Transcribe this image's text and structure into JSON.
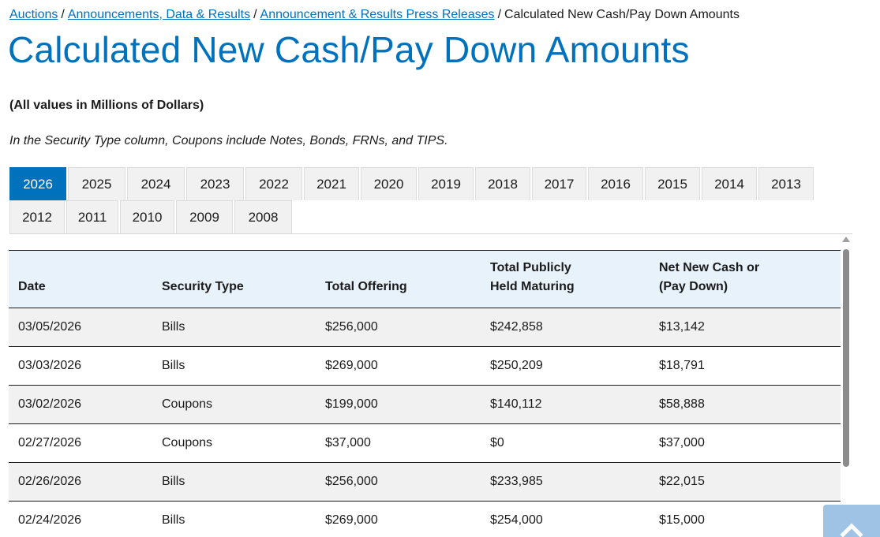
{
  "breadcrumb": {
    "items": [
      "Auctions",
      "Announcements, Data & Results",
      "Announcement & Results Press Releases"
    ],
    "separator": "/",
    "current": "Calculated New Cash/Pay Down Amounts"
  },
  "title": "Calculated New Cash/Pay Down Amounts",
  "units_note": "(All values in Millions of Dollars)",
  "type_note": "In the Security Type column, Coupons include Notes, Bonds, FRNs, and TIPS.",
  "tabs": {
    "active": "2026",
    "row1": [
      "2026",
      "2025",
      "2024",
      "2023",
      "2022",
      "2021",
      "2020",
      "2019",
      "2018",
      "2017",
      "2016",
      "2015",
      "2014",
      "2013"
    ],
    "row2": [
      "2012",
      "2011",
      "2010",
      "2009",
      "2008"
    ]
  },
  "table": {
    "headers": {
      "date": "Date",
      "security_type": "Security Type",
      "total_offering": "Total Offering",
      "held_maturing_line1": "Total Publicly",
      "held_maturing_line2": "Held Maturing",
      "net_line1": "Net New Cash or",
      "net_line2": "(Pay Down)"
    },
    "rows": [
      {
        "date": "03/05/2026",
        "type": "Bills",
        "offering": "$256,000",
        "maturing": "$242,858",
        "net": "$13,142"
      },
      {
        "date": "03/03/2026",
        "type": "Bills",
        "offering": "$269,000",
        "maturing": "$250,209",
        "net": "$18,791"
      },
      {
        "date": "03/02/2026",
        "type": "Coupons",
        "offering": "$199,000",
        "maturing": "$140,112",
        "net": "$58,888"
      },
      {
        "date": "02/27/2026",
        "type": "Coupons",
        "offering": "$37,000",
        "maturing": "$0",
        "net": "$37,000"
      },
      {
        "date": "02/26/2026",
        "type": "Bills",
        "offering": "$256,000",
        "maturing": "$233,985",
        "net": "$22,015"
      },
      {
        "date": "02/24/2026",
        "type": "Bills",
        "offering": "$269,000",
        "maturing": "$254,000",
        "net": "$15,000"
      }
    ]
  },
  "colors": {
    "link": "#0071bc",
    "active_tab": "#0071bc",
    "header_bg": "#e7f2fa",
    "back_to_top": "#9fc3e4"
  },
  "icons": {
    "back_to_top": "chevron-up-icon",
    "scroll_up": "scroll-up-arrow-icon"
  }
}
